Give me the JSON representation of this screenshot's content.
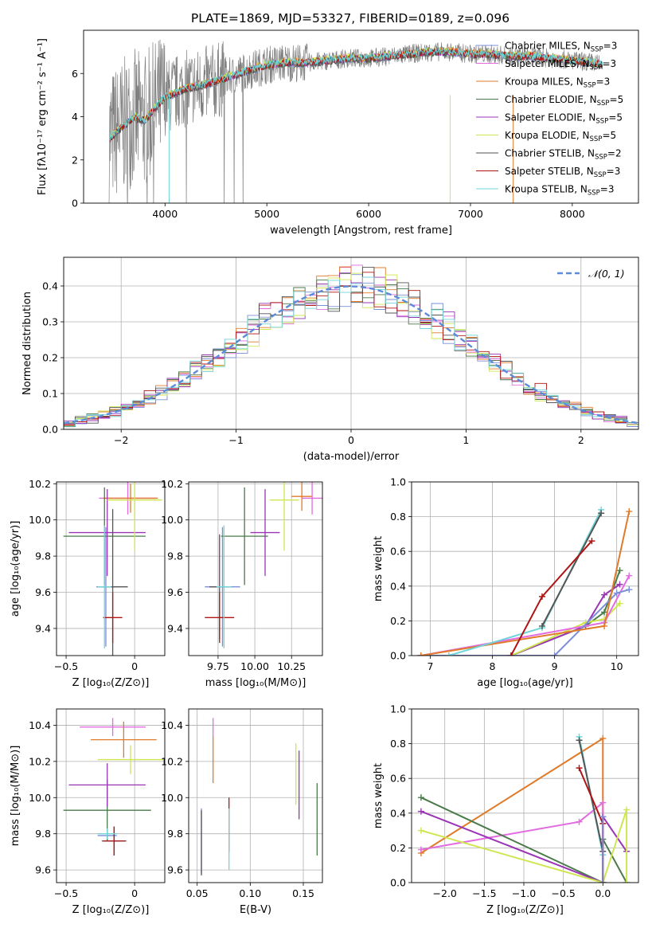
{
  "title": "PLATE=1869, MJD=53327, FIBERID=0189, z=0.096",
  "colors": {
    "Chabrier MILES": "#7b8fd8",
    "Salpeter MILES": "#e26be0",
    "Kroupa MILES": "#e07b2a",
    "Chabrier ELODIE": "#4a7a4a",
    "Salpeter ELODIE": "#9a35b5",
    "Kroupa ELODIE": "#cfe650",
    "Chabrier STELIB": "#555555",
    "Salpeter STELIB": "#b01515",
    "Kroupa STELIB": "#6fd5d8",
    "data": "#808080",
    "normal": "#5b8bd9",
    "grid": "#b0b0b0"
  },
  "legend_entries": [
    {
      "name": "Chabrier MILES",
      "n": "3"
    },
    {
      "name": "Salpeter MILES",
      "n": "3"
    },
    {
      "name": "Kroupa MILES",
      "n": "3"
    },
    {
      "name": "Chabrier ELODIE",
      "n": "5"
    },
    {
      "name": "Salpeter ELODIE",
      "n": "5"
    },
    {
      "name": "Kroupa ELODIE",
      "n": "5"
    },
    {
      "name": "Chabrier STELIB",
      "n": "2"
    },
    {
      "name": "Salpeter STELIB",
      "n": "3"
    },
    {
      "name": "Kroupa STELIB",
      "n": "3"
    }
  ],
  "chart_data": [
    {
      "id": "spectrum",
      "type": "line",
      "xlabel": "wavelength [Angstrom, rest frame]",
      "ylabel": "Flux [fλ10⁻¹⁷ erg cm⁻² s⁻¹ A⁻¹]",
      "xlim": [
        3200,
        8650
      ],
      "ylim": [
        0,
        8
      ],
      "xticks": [
        4000,
        5000,
        6000,
        7000,
        8000
      ],
      "yticks": [
        0,
        2,
        4,
        6
      ],
      "model_shape": {
        "x": [
          3450,
          3600,
          3700,
          3800,
          3900,
          4000,
          4200,
          4400,
          4600,
          4800,
          5000,
          5200,
          5400,
          5600,
          5800,
          6000,
          6200,
          6400,
          6600,
          6800,
          7000,
          7200,
          7400,
          7600,
          7800,
          8000,
          8200,
          8300
        ],
        "y": [
          3.0,
          3.6,
          4.0,
          3.8,
          4.4,
          4.9,
          5.3,
          5.5,
          5.8,
          6.1,
          6.4,
          6.5,
          6.5,
          6.6,
          6.7,
          6.7,
          6.8,
          6.9,
          7.0,
          7.0,
          6.9,
          6.9,
          6.8,
          6.8,
          6.7,
          6.6,
          6.5,
          6.4
        ]
      },
      "legend_position": "upper-right"
    },
    {
      "id": "residuals",
      "type": "area",
      "xlabel": "(data-model)/error",
      "ylabel": "Normed distribution",
      "xlim": [
        -2.5,
        2.5
      ],
      "ylim": [
        0,
        0.48
      ],
      "xticks": [
        -2,
        -1,
        0,
        1,
        2
      ],
      "yticks": [
        0.0,
        0.1,
        0.2,
        0.3,
        0.4
      ],
      "bins": [
        -2.5,
        -2.4,
        -2.3,
        -2.2,
        -2.1,
        -2.0,
        -1.9,
        -1.8,
        -1.7,
        -1.6,
        -1.5,
        -1.4,
        -1.3,
        -1.2,
        -1.1,
        -1.0,
        -0.9,
        -0.8,
        -0.7,
        -0.6,
        -0.5,
        -0.4,
        -0.3,
        -0.2,
        -0.1,
        0.0,
        0.1,
        0.2,
        0.3,
        0.4,
        0.5,
        0.6,
        0.7,
        0.8,
        0.9,
        1.0,
        1.1,
        1.2,
        1.3,
        1.4,
        1.5,
        1.6,
        1.7,
        1.8,
        1.9,
        2.0,
        2.1,
        2.2,
        2.3,
        2.4,
        2.5
      ],
      "legend": "𝒩(0, 1)",
      "legend_position": "upper-right"
    },
    {
      "id": "age_vs_Z",
      "type": "scatter",
      "xlabel": "Z [log₁₀(Z/Z⊙)]",
      "ylabel": "age  [log₁₀(age/yr)]",
      "xlim": [
        -0.57,
        0.22
      ],
      "ylim": [
        9.25,
        10.21
      ],
      "xticks": [
        -0.5,
        0.0
      ],
      "yticks": [
        9.4,
        9.6,
        9.8,
        10.0,
        10.2
      ],
      "points": [
        {
          "s": "Chabrier MILES",
          "x": -0.21,
          "y": 9.63,
          "xerr": 0.07,
          "yerr": 0.33
        },
        {
          "s": "Salpeter MILES",
          "x": -0.05,
          "y": 10.12,
          "xerr": 0.21,
          "yerr": 0.09
        },
        {
          "s": "Kroupa MILES",
          "x": -0.03,
          "y": 10.12,
          "xerr": 0.2,
          "yerr": 0.08
        },
        {
          "s": "Chabrier ELODIE",
          "x": -0.22,
          "y": 9.91,
          "xerr": 0.3,
          "yerr": 0.27
        },
        {
          "s": "Salpeter ELODIE",
          "x": -0.2,
          "y": 9.93,
          "xerr": 0.28,
          "yerr": 0.24
        },
        {
          "s": "Kroupa ELODIE",
          "x": 0.0,
          "y": 10.11,
          "xerr": 0.2,
          "yerr": 0.28
        },
        {
          "s": "Chabrier STELIB",
          "x": -0.16,
          "y": 9.63,
          "xerr": 0.11,
          "yerr": 0.43
        },
        {
          "s": "Salpeter STELIB",
          "x": -0.16,
          "y": 9.46,
          "xerr": 0.07,
          "yerr": 0.14
        },
        {
          "s": "Kroupa STELIB",
          "x": -0.22,
          "y": 9.63,
          "xerr": 0.05,
          "yerr": 0.34
        }
      ]
    },
    {
      "id": "age_vs_mass",
      "type": "scatter",
      "xlabel": "mass [log₁₀(M/M⊙)]",
      "ylabel": "",
      "xlim": [
        9.55,
        10.46
      ],
      "ylim": [
        9.25,
        10.21
      ],
      "xticks": [
        9.75,
        10.0,
        10.25
      ],
      "xtick_labels": [
        "9.75",
        "10.00",
        "10.25"
      ],
      "yticks": [
        9.4,
        9.6,
        9.8,
        10.0,
        10.2
      ],
      "points": [
        {
          "s": "Chabrier MILES",
          "x": 9.78,
          "y": 9.63,
          "xerr": 0.12,
          "yerr": 0.33
        },
        {
          "s": "Salpeter MILES",
          "x": 10.39,
          "y": 10.12,
          "xerr": 0.07,
          "yerr": 0.09
        },
        {
          "s": "Kroupa MILES",
          "x": 10.32,
          "y": 10.13,
          "xerr": 0.07,
          "yerr": 0.08
        },
        {
          "s": "Chabrier ELODIE",
          "x": 9.93,
          "y": 9.91,
          "xerr": 0.16,
          "yerr": 0.27
        },
        {
          "s": "Salpeter ELODIE",
          "x": 10.07,
          "y": 9.93,
          "xerr": 0.1,
          "yerr": 0.24
        },
        {
          "s": "Kroupa ELODIE",
          "x": 10.2,
          "y": 10.11,
          "xerr": 0.1,
          "yerr": 0.28
        },
        {
          "s": "Chabrier STELIB",
          "x": 9.76,
          "y": 9.63,
          "xerr": 0.07,
          "yerr": 0.29
        },
        {
          "s": "Salpeter STELIB",
          "x": 9.76,
          "y": 9.46,
          "xerr": 0.1,
          "yerr": 0.14
        },
        {
          "s": "Kroupa STELIB",
          "x": 9.79,
          "y": 9.63,
          "xerr": 0.05,
          "yerr": 0.34
        }
      ]
    },
    {
      "id": "massweight_vs_age",
      "type": "line",
      "xlabel": "age  [log₁₀(age/yr)]",
      "ylabel": "mass weight",
      "xlim": [
        6.7,
        10.35
      ],
      "ylim": [
        0,
        1
      ],
      "xticks": [
        7,
        8,
        9,
        10
      ],
      "yticks": [
        0.0,
        0.2,
        0.4,
        0.6,
        0.8,
        1.0
      ],
      "series": [
        {
          "s": "Chabrier ELODIE",
          "x": [
            6.85,
            8.3,
            9.5,
            9.8,
            10.05
          ],
          "y": [
            0.0,
            0.0,
            0.17,
            0.25,
            0.49
          ]
        },
        {
          "s": "Salpeter ELODIE",
          "x": [
            6.85,
            8.3,
            9.5,
            9.8,
            10.05
          ],
          "y": [
            0.0,
            0.0,
            0.17,
            0.35,
            0.41
          ]
        },
        {
          "s": "Kroupa ELODIE",
          "x": [
            6.85,
            8.3,
            9.5,
            9.8,
            10.05
          ],
          "y": [
            0.0,
            0.0,
            0.19,
            0.21,
            0.3
          ]
        },
        {
          "s": "Salpeter MILES",
          "x": [
            6.85,
            9.8,
            10.2
          ],
          "y": [
            0.0,
            0.19,
            0.46
          ]
        },
        {
          "s": "Chabrier MILES",
          "x": [
            6.85,
            9.0,
            10.0,
            10.2
          ],
          "y": [
            0.0,
            0.0,
            0.36,
            0.38
          ]
        },
        {
          "s": "Kroupa MILES",
          "x": [
            6.85,
            9.8,
            10.2
          ],
          "y": [
            0.0,
            0.17,
            0.83
          ]
        },
        {
          "s": "Kroupa STELIB",
          "x": [
            7.3,
            8.8,
            9.75
          ],
          "y": [
            0.0,
            0.16,
            0.84
          ]
        },
        {
          "s": "Chabrier STELIB",
          "x": [
            8.8,
            9.75
          ],
          "y": [
            0.17,
            0.82
          ]
        },
        {
          "s": "Salpeter STELIB",
          "x": [
            8.3,
            8.8,
            9.6
          ],
          "y": [
            0.0,
            0.34,
            0.66
          ]
        }
      ]
    },
    {
      "id": "mass_vs_Z",
      "type": "scatter",
      "xlabel": "Z [log₁₀(Z/Z⊙)]",
      "ylabel": "mass [log₁₀(M/M⊙)]",
      "xlim": [
        -0.57,
        0.22
      ],
      "ylim": [
        9.53,
        10.49
      ],
      "xticks": [
        -0.5,
        0.0
      ],
      "yticks": [
        9.6,
        9.8,
        10.0,
        10.2,
        10.4
      ],
      "points": [
        {
          "s": "Chabrier MILES",
          "x": -0.2,
          "y": 9.79,
          "xerr": 0.07,
          "yerr": 0.03
        },
        {
          "s": "Salpeter MILES",
          "x": -0.16,
          "y": 10.39,
          "xerr": 0.24,
          "yerr": 0.05
        },
        {
          "s": "Kroupa MILES",
          "x": -0.08,
          "y": 10.32,
          "xerr": 0.24,
          "yerr": 0.1
        },
        {
          "s": "Chabrier ELODIE",
          "x": -0.2,
          "y": 9.93,
          "xerr": 0.32,
          "yerr": 0.17
        },
        {
          "s": "Salpeter ELODIE",
          "x": -0.2,
          "y": 10.07,
          "xerr": 0.28,
          "yerr": 0.12
        },
        {
          "s": "Kroupa ELODIE",
          "x": -0.03,
          "y": 10.21,
          "xerr": 0.24,
          "yerr": 0.08
        },
        {
          "s": "Chabrier STELIB",
          "x": -0.15,
          "y": 9.76,
          "xerr": 0.09,
          "yerr": 0.08
        },
        {
          "s": "Salpeter STELIB",
          "x": -0.15,
          "y": 9.76,
          "xerr": 0.08,
          "yerr": 0.08
        },
        {
          "s": "Kroupa STELIB",
          "x": -0.2,
          "y": 9.8,
          "xerr": 0.07,
          "yerr": 0.03
        }
      ]
    },
    {
      "id": "mass_vs_ebv",
      "type": "scatter",
      "xlabel": "E(B-V)",
      "ylabel": "",
      "xlim": [
        0.042,
        0.168
      ],
      "ylim": [
        9.53,
        10.49
      ],
      "xticks": [
        0.05,
        0.1,
        0.15
      ],
      "xtick_labels": [
        "0.05",
        "0.10",
        "0.15"
      ],
      "yticks": [
        9.6,
        9.8,
        10.0,
        10.2,
        10.4
      ],
      "points": [
        {
          "s": "Chabrier MILES",
          "x": 0.054,
          "y": 9.76,
          "yerr": 0.18
        },
        {
          "s": "Salpeter MILES",
          "x": 0.065,
          "y": 10.39,
          "yerr": 0.05
        },
        {
          "s": "Kroupa MILES",
          "x": 0.065,
          "y": 10.21,
          "yerr": 0.13
        },
        {
          "s": "Chabrier ELODIE",
          "x": 0.163,
          "y": 9.88,
          "yerr": 0.2
        },
        {
          "s": "Salpeter ELODIE",
          "x": 0.146,
          "y": 10.07,
          "yerr": 0.19
        },
        {
          "s": "Kroupa ELODIE",
          "x": 0.143,
          "y": 10.13,
          "yerr": 0.17
        },
        {
          "s": "Chabrier STELIB",
          "x": 0.054,
          "y": 9.75,
          "yerr": 0.18
        },
        {
          "s": "Salpeter STELIB",
          "x": 0.08,
          "y": 9.85,
          "yerr": 0.15
        },
        {
          "s": "Kroupa STELIB",
          "x": 0.08,
          "y": 9.77,
          "yerr": 0.17
        }
      ]
    },
    {
      "id": "massweight_vs_Z",
      "type": "line",
      "xlabel": "Z [log₁₀(Z/Z⊙)]",
      "ylabel": "mass weight",
      "xlim": [
        -2.42,
        0.45
      ],
      "ylim": [
        0,
        1
      ],
      "xticks": [
        -2.0,
        -1.5,
        -1.0,
        -0.5,
        0.0
      ],
      "xtick_labels": [
        "−2.0",
        "−1.5",
        "−1.0",
        "−0.5",
        "0.0"
      ],
      "yticks": [
        0.0,
        0.2,
        0.4,
        0.6,
        0.8,
        1.0
      ],
      "series": [
        {
          "s": "Kroupa MILES",
          "x": [
            -2.3,
            0.0,
            0.0
          ],
          "y": [
            0.17,
            0.83,
            0.0
          ]
        },
        {
          "s": "Salpeter MILES",
          "x": [
            -2.3,
            -0.3,
            0.0,
            0.0
          ],
          "y": [
            0.19,
            0.35,
            0.46,
            0.0
          ]
        },
        {
          "s": "Chabrier ELODIE",
          "x": [
            -2.3,
            0.0,
            0.0,
            0.3
          ],
          "y": [
            0.49,
            0.0,
            0.25,
            0.0
          ]
        },
        {
          "s": "Salpeter ELODIE",
          "x": [
            -2.3,
            0.0,
            0.0,
            0.3
          ],
          "y": [
            0.41,
            0.0,
            0.38,
            0.18
          ]
        },
        {
          "s": "Kroupa ELODIE",
          "x": [
            -2.3,
            0.0,
            0.3,
            0.3
          ],
          "y": [
            0.3,
            0.0,
            0.42,
            0.0
          ]
        },
        {
          "s": "Kroupa STELIB",
          "x": [
            -0.3,
            0.0,
            0.0
          ],
          "y": [
            0.84,
            0.16,
            0.0
          ]
        },
        {
          "s": "Chabrier STELIB",
          "x": [
            -0.3,
            0.0,
            0.0
          ],
          "y": [
            0.82,
            0.18,
            0.0
          ]
        },
        {
          "s": "Salpeter STELIB",
          "x": [
            -0.3,
            0.0,
            0.0
          ],
          "y": [
            0.66,
            0.34,
            0.0
          ]
        },
        {
          "s": "Chabrier MILES",
          "x": [
            0.0,
            0.0
          ],
          "y": [
            0.0,
            0.38
          ]
        }
      ]
    }
  ]
}
